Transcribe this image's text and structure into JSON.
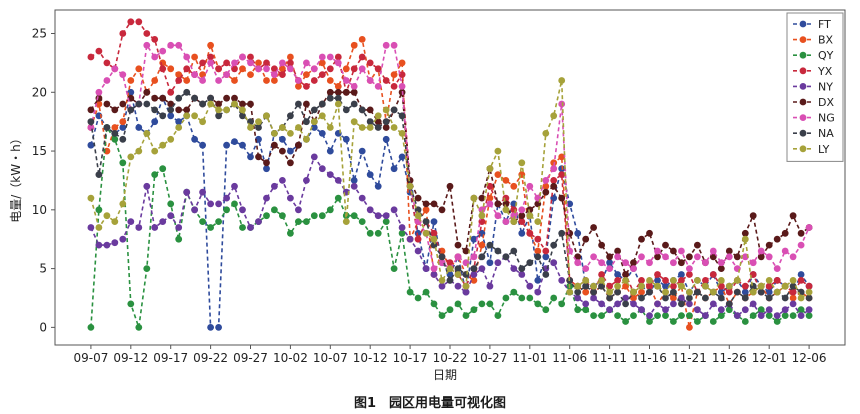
{
  "figure": {
    "caption": "图1　园区用电量可视化图"
  },
  "chart_data": {
    "type": "line",
    "xlabel": "日期",
    "ylabel": "电量/（kW・h）",
    "ylim": [
      -1.5,
      27
    ],
    "yticks": [
      0,
      5,
      10,
      15,
      20,
      25
    ],
    "x_tick_labels": [
      "09-07",
      "09-12",
      "09-17",
      "09-22",
      "09-27",
      "10-02",
      "10-07",
      "10-12",
      "10-17",
      "10-22",
      "10-27",
      "11-01",
      "11-06",
      "11-11",
      "11-16",
      "11-21",
      "11-26",
      "12-01",
      "12-06"
    ],
    "x_tick_days": [
      0,
      5,
      10,
      15,
      20,
      25,
      30,
      35,
      40,
      45,
      50,
      55,
      60,
      65,
      70,
      75,
      80,
      85,
      90
    ],
    "xlim_days": [
      -4.5,
      94.5
    ],
    "grid": false,
    "legend_position": "top-right",
    "series": [
      {
        "name": "FT",
        "color": "#2f4b9c",
        "values": [
          15.5,
          18.0,
          17.0,
          16.5,
          17.0,
          20.0,
          17.0,
          16.5,
          17.5,
          19.5,
          18.0,
          17.5,
          18.0,
          16.0,
          15.5,
          0.0,
          0.0,
          15.5,
          15.8,
          15.5,
          14.5,
          16.0,
          13.5,
          16.5,
          16.0,
          15.0,
          15.5,
          16.0,
          17.0,
          16.5,
          15.0,
          16.5,
          16.0,
          12.5,
          15.0,
          13.0,
          12.0,
          16.0,
          13.5,
          14.5,
          11.5,
          8.0,
          5.0,
          9.0,
          5.5,
          4.5,
          6.0,
          3.0,
          7.5,
          8.0,
          5.5,
          10.5,
          9.0,
          10.5,
          8.0,
          9.5,
          4.0,
          6.0,
          11.0,
          13.5,
          10.5,
          8.0,
          3.5,
          3.5,
          4.0,
          5.5,
          4.5,
          4.0,
          5.0,
          3.5,
          3.0,
          4.0,
          3.5,
          4.0,
          4.5,
          3.0,
          4.0,
          3.5,
          4.5,
          3.0,
          3.5,
          4.0,
          3.0,
          4.5,
          3.5,
          3.0,
          4.0,
          3.5,
          3.0,
          4.5,
          3.5
        ]
      },
      {
        "name": "BX",
        "color": "#e8501f",
        "values": [
          17.0,
          19.0,
          15.0,
          17.0,
          17.5,
          21.0,
          22.0,
          20.0,
          21.0,
          22.5,
          22.0,
          21.5,
          21.0,
          23.0,
          21.5,
          24.0,
          22.0,
          21.5,
          21.0,
          22.0,
          21.5,
          22.5,
          21.0,
          21.0,
          22.0,
          23.0,
          20.5,
          21.5,
          22.0,
          22.5,
          21.0,
          20.5,
          22.0,
          24.0,
          24.5,
          21.0,
          22.0,
          17.5,
          21.5,
          22.5,
          7.5,
          9.0,
          10.0,
          4.5,
          6.5,
          5.0,
          6.0,
          4.5,
          4.0,
          7.0,
          11.0,
          13.0,
          12.5,
          12.0,
          13.0,
          8.0,
          6.5,
          12.0,
          14.0,
          14.5,
          4.0,
          3.5,
          3.0,
          3.0,
          3.5,
          2.5,
          3.0,
          3.5,
          2.5,
          3.0,
          3.5,
          2.0,
          3.0,
          2.5,
          3.5,
          0.0,
          3.0,
          2.5,
          3.0,
          3.5,
          2.0,
          3.0,
          2.5,
          3.0,
          3.5,
          2.5,
          3.0,
          3.5,
          2.5,
          3.0,
          2.5
        ]
      },
      {
        "name": "QY",
        "color": "#2a9140",
        "values": [
          0.0,
          10.0,
          17.0,
          16.0,
          14.0,
          2.0,
          0.0,
          5.0,
          13.0,
          13.5,
          10.5,
          7.5,
          11.5,
          10.0,
          9.0,
          8.5,
          9.0,
          10.0,
          10.5,
          8.5,
          8.5,
          9.0,
          9.5,
          10.0,
          9.5,
          8.0,
          9.0,
          9.0,
          9.5,
          9.5,
          10.0,
          11.0,
          9.5,
          9.5,
          9.0,
          8.0,
          8.0,
          9.0,
          5.0,
          8.0,
          3.0,
          2.5,
          3.0,
          2.0,
          1.0,
          1.5,
          2.0,
          1.0,
          1.5,
          2.0,
          2.0,
          1.0,
          2.5,
          3.0,
          2.5,
          2.5,
          2.0,
          1.5,
          2.5,
          2.0,
          3.5,
          1.5,
          1.5,
          1.0,
          1.0,
          1.5,
          1.0,
          0.5,
          1.0,
          1.5,
          0.5,
          1.0,
          1.0,
          0.5,
          1.0,
          1.0,
          0.5,
          1.0,
          0.5,
          1.0,
          1.5,
          1.0,
          0.5,
          1.0,
          1.5,
          1.0,
          0.5,
          1.0,
          1.0,
          1.5,
          1.0
        ]
      },
      {
        "name": "YX",
        "color": "#c8283c",
        "values": [
          23.0,
          23.5,
          22.5,
          22.0,
          25.0,
          26.0,
          26.0,
          25.0,
          24.5,
          22.0,
          20.0,
          21.0,
          22.0,
          21.5,
          22.5,
          23.0,
          22.0,
          22.5,
          22.0,
          23.0,
          23.0,
          22.0,
          22.5,
          22.0,
          21.5,
          22.5,
          21.0,
          20.5,
          21.0,
          21.5,
          22.0,
          23.0,
          20.0,
          22.0,
          23.0,
          22.5,
          22.0,
          21.0,
          20.5,
          21.5,
          12.0,
          7.5,
          9.0,
          8.0,
          6.0,
          5.5,
          4.5,
          3.5,
          5.0,
          9.0,
          12.0,
          10.5,
          11.0,
          10.0,
          9.0,
          8.0,
          7.5,
          6.5,
          12.5,
          13.0,
          4.0,
          3.5,
          4.0,
          3.0,
          4.5,
          3.5,
          4.0,
          4.5,
          3.0,
          4.0,
          3.5,
          4.5,
          4.0,
          3.5,
          4.0,
          4.5,
          3.0,
          4.0,
          4.5,
          3.5,
          3.0,
          4.0,
          3.5,
          4.5,
          3.0,
          3.5,
          4.0,
          3.5,
          3.0,
          4.0,
          3.5
        ]
      },
      {
        "name": "NY",
        "color": "#6a3a9e",
        "values": [
          8.5,
          7.0,
          7.0,
          7.2,
          7.5,
          9.0,
          8.5,
          12.0,
          8.5,
          9.0,
          9.5,
          8.5,
          11.5,
          10.0,
          11.5,
          10.5,
          10.5,
          11.0,
          12.0,
          10.0,
          8.5,
          9.0,
          11.0,
          12.0,
          12.5,
          11.0,
          10.0,
          12.5,
          14.5,
          13.5,
          13.0,
          12.5,
          11.5,
          12.0,
          11.0,
          10.0,
          9.5,
          9.5,
          10.0,
          8.5,
          7.5,
          6.5,
          5.0,
          4.5,
          3.5,
          4.0,
          3.5,
          3.0,
          4.5,
          5.0,
          3.5,
          5.5,
          6.0,
          5.0,
          4.5,
          3.5,
          3.0,
          5.0,
          5.5,
          4.0,
          3.0,
          2.5,
          2.0,
          2.5,
          2.0,
          1.5,
          2.0,
          2.5,
          2.0,
          1.5,
          1.0,
          2.0,
          1.5,
          2.0,
          2.5,
          2.0,
          1.5,
          1.0,
          2.0,
          1.5,
          2.0,
          1.0,
          1.5,
          2.0,
          1.0,
          1.5,
          1.0,
          1.5,
          2.0,
          1.0,
          1.5
        ]
      },
      {
        "name": "DX",
        "color": "#5a1a1a",
        "values": [
          18.5,
          19.5,
          19.0,
          18.5,
          19.0,
          19.5,
          19.0,
          20.0,
          19.5,
          19.5,
          19.0,
          18.5,
          18.5,
          19.5,
          19.0,
          19.5,
          19.0,
          19.5,
          19.5,
          19.0,
          19.0,
          14.5,
          14.0,
          15.5,
          15.0,
          14.0,
          15.5,
          19.0,
          17.5,
          19.0,
          20.0,
          20.0,
          20.0,
          20.0,
          18.5,
          18.5,
          17.5,
          17.0,
          18.5,
          20.0,
          12.5,
          11.0,
          10.5,
          10.5,
          10.0,
          12.0,
          7.0,
          6.5,
          11.0,
          11.0,
          13.5,
          10.5,
          10.5,
          9.0,
          9.5,
          10.0,
          10.5,
          11.5,
          12.0,
          11.0,
          8.0,
          6.0,
          7.5,
          8.5,
          7.0,
          6.0,
          6.5,
          4.5,
          5.5,
          7.5,
          8.0,
          6.0,
          7.0,
          6.5,
          5.5,
          6.0,
          7.0,
          5.5,
          6.0,
          5.0,
          6.5,
          6.0,
          8.0,
          9.5,
          6.0,
          7.0,
          7.5,
          8.0,
          9.5,
          8.0,
          8.5
        ]
      },
      {
        "name": "NG",
        "color": "#d94fb4",
        "values": [
          17.0,
          20.0,
          21.0,
          22.0,
          21.5,
          18.5,
          19.0,
          24.0,
          23.0,
          23.5,
          24.0,
          24.0,
          23.0,
          21.5,
          21.0,
          22.5,
          21.0,
          21.5,
          22.5,
          23.0,
          22.5,
          22.0,
          22.0,
          21.5,
          22.5,
          22.0,
          21.0,
          22.5,
          22.0,
          23.0,
          23.0,
          22.5,
          21.0,
          20.5,
          22.0,
          21.0,
          20.5,
          24.0,
          24.0,
          20.5,
          12.0,
          9.0,
          8.0,
          5.0,
          5.5,
          5.0,
          6.0,
          5.5,
          6.0,
          10.0,
          10.5,
          9.5,
          9.0,
          9.5,
          10.0,
          12.0,
          11.0,
          12.5,
          13.5,
          19.0,
          6.5,
          5.5,
          5.0,
          6.0,
          5.5,
          5.0,
          6.0,
          5.5,
          5.0,
          6.0,
          5.5,
          6.5,
          6.0,
          5.5,
          6.5,
          5.0,
          6.0,
          5.5,
          6.5,
          5.5,
          6.0,
          5.0,
          6.0,
          5.5,
          6.5,
          6.0,
          5.0,
          6.5,
          6.0,
          7.0,
          8.5
        ]
      },
      {
        "name": "NA",
        "color": "#3a3f4a",
        "values": [
          17.5,
          13.0,
          17.0,
          16.5,
          16.0,
          18.5,
          19.0,
          19.0,
          18.5,
          18.0,
          18.5,
          19.5,
          20.0,
          19.5,
          19.0,
          19.5,
          18.0,
          18.5,
          19.0,
          18.0,
          17.5,
          17.0,
          18.0,
          16.5,
          17.0,
          18.0,
          19.0,
          17.5,
          18.5,
          19.0,
          19.5,
          19.5,
          18.5,
          19.0,
          18.5,
          17.5,
          17.0,
          17.5,
          18.5,
          18.0,
          12.0,
          10.0,
          9.0,
          7.0,
          6.0,
          4.0,
          5.0,
          4.5,
          5.0,
          6.0,
          7.0,
          6.5,
          6.0,
          6.5,
          5.0,
          5.5,
          6.0,
          4.5,
          7.0,
          8.0,
          4.0,
          3.0,
          3.5,
          3.0,
          3.5,
          2.5,
          3.0,
          2.0,
          3.0,
          2.5,
          3.0,
          3.5,
          2.5,
          3.0,
          2.0,
          2.5,
          3.0,
          2.5,
          3.0,
          2.5,
          2.0,
          3.0,
          2.5,
          3.5,
          3.0,
          2.5,
          3.0,
          2.5,
          3.5,
          3.0,
          2.5
        ]
      },
      {
        "name": "LY",
        "color": "#a6a23a",
        "values": [
          11.0,
          8.5,
          9.5,
          9.0,
          10.5,
          14.5,
          15.0,
          16.5,
          15.0,
          15.5,
          16.0,
          17.0,
          18.0,
          18.0,
          17.5,
          19.0,
          18.5,
          18.5,
          19.0,
          18.5,
          17.0,
          17.5,
          18.0,
          16.5,
          17.0,
          16.5,
          17.0,
          16.0,
          17.5,
          18.0,
          17.0,
          19.0,
          9.0,
          17.5,
          17.0,
          17.0,
          18.0,
          18.5,
          17.0,
          16.5,
          12.0,
          9.5,
          8.0,
          7.5,
          4.0,
          5.0,
          4.5,
          3.5,
          11.0,
          9.5,
          13.5,
          15.0,
          10.0,
          9.0,
          14.0,
          9.5,
          9.0,
          16.5,
          18.0,
          21.0,
          3.0,
          3.5,
          4.0,
          3.5,
          4.0,
          3.0,
          3.5,
          4.0,
          3.0,
          3.5,
          4.0,
          3.5,
          3.0,
          4.0,
          3.5,
          3.0,
          4.0,
          3.5,
          3.0,
          4.0,
          3.5,
          4.0,
          7.5,
          3.0,
          3.5,
          4.0,
          3.0,
          3.5,
          4.0,
          2.5,
          3.0
        ]
      }
    ]
  }
}
